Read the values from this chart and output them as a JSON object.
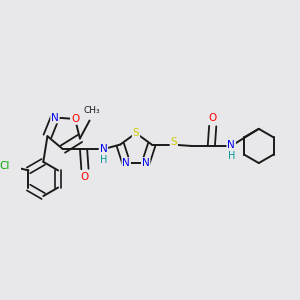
{
  "background_color": "#e8e8ea",
  "bond_color": "#1a1a1a",
  "atom_colors": {
    "O": "#ff0000",
    "N": "#0000ee",
    "S": "#cccc00",
    "Cl": "#00aa00",
    "H": "#009999",
    "C": "#1a1a1a"
  },
  "figsize": [
    3.0,
    3.0
  ],
  "dpi": 100,
  "xlim": [
    0,
    10
  ],
  "ylim": [
    0,
    10
  ]
}
